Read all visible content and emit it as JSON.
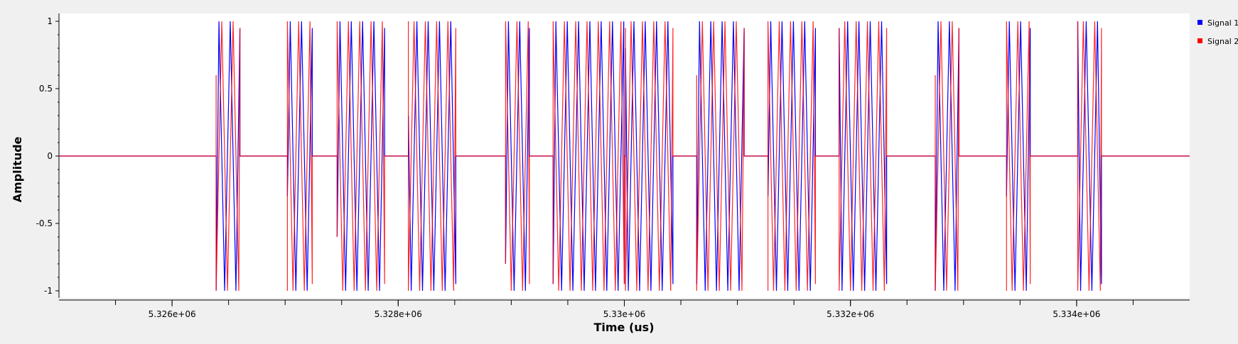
{
  "chart_data": {
    "type": "line",
    "xlabel": "Time (us)",
    "ylabel": "Amplitude",
    "xlim": [
      5325000,
      5335000
    ],
    "ylim": [
      -1.1,
      1.1
    ],
    "x_ticks": [
      5326000,
      5328000,
      5330000,
      5332000,
      5334000
    ],
    "x_tick_labels": [
      "5.326e+06",
      "5.328e+06",
      "5.33e+06",
      "5.332e+06",
      "5.334e+06"
    ],
    "y_ticks": [
      1,
      0.5,
      0,
      -0.5,
      -1
    ],
    "y_tick_labels": [
      "1",
      "0.5",
      "0",
      "-0.5",
      "-1"
    ],
    "grid": false,
    "legend_position": "right",
    "legend": [
      "Signal 1",
      "Signal 2"
    ],
    "series": [
      {
        "name": "Signal 1",
        "color": "#0000ff"
      },
      {
        "name": "Signal 2",
        "color": "#ff0000"
      }
    ],
    "carrier_period_us": 100,
    "bursts": [
      {
        "start": 5326390,
        "end": 5326600,
        "s1_start": -1,
        "s2_start": 0.6
      },
      {
        "start": 5327020,
        "end": 5327240,
        "s1_start": -0.3,
        "s2_start": -1
      },
      {
        "start": 5327460,
        "end": 5327880,
        "s1_start": -0.6,
        "s2_start": -0.6
      },
      {
        "start": 5328090,
        "end": 5328510,
        "s1_start": 0.3,
        "s2_start": 1
      },
      {
        "start": 5328950,
        "end": 5329160,
        "s1_start": -0.8,
        "s2_start": -0.8
      },
      {
        "start": 5329370,
        "end": 5330000,
        "s1_start": -0.95,
        "s2_start": -0.95
      },
      {
        "start": 5330010,
        "end": 5330430,
        "s1_start": 0.8,
        "s2_start": 0.95
      },
      {
        "start": 5330640,
        "end": 5331060,
        "s1_start": -0.95,
        "s2_start": 0.6
      },
      {
        "start": 5331270,
        "end": 5331690,
        "s1_start": -0.3,
        "s2_start": -1
      },
      {
        "start": 5331900,
        "end": 5332320,
        "s1_start": 0.95,
        "s2_start": 0.95
      },
      {
        "start": 5332750,
        "end": 5332960,
        "s1_start": -1,
        "s2_start": 0.6
      },
      {
        "start": 5333380,
        "end": 5333590,
        "s1_start": -0.3,
        "s2_start": -1
      },
      {
        "start": 5334010,
        "end": 5334220,
        "s1_start": 1,
        "s2_start": 1
      }
    ]
  }
}
